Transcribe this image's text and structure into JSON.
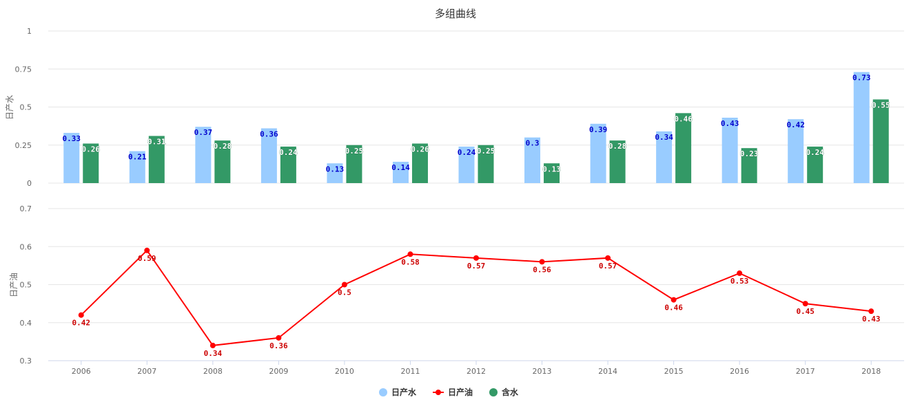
{
  "chart_data": {
    "title": "多组曲线",
    "categories": [
      "2006",
      "2007",
      "2008",
      "2009",
      "2010",
      "2011",
      "2012",
      "2013",
      "2014",
      "2015",
      "2016",
      "2017",
      "2018"
    ],
    "panels": [
      {
        "type": "bar",
        "ylabel": "日产水",
        "ylim": [
          0,
          1
        ],
        "yticks": [
          0,
          0.25,
          0.5,
          0.75,
          1
        ],
        "series": [
          {
            "name": "日产水",
            "color": "#99ccff",
            "label_color": "#0000cc",
            "values": [
              0.33,
              0.21,
              0.37,
              0.36,
              0.13,
              0.14,
              0.24,
              0.3,
              0.39,
              0.34,
              0.43,
              0.42,
              0.73
            ]
          },
          {
            "name": "含水",
            "color": "#339966",
            "label_color": "#ffffff",
            "values": [
              0.26,
              0.31,
              0.28,
              0.24,
              0.25,
              0.26,
              0.25,
              0.13,
              0.28,
              0.46,
              0.23,
              0.24,
              0.55
            ]
          }
        ]
      },
      {
        "type": "line",
        "ylabel": "日产油",
        "ylim": [
          0.3,
          0.7
        ],
        "yticks": [
          0.3,
          0.4,
          0.5,
          0.6,
          0.7
        ],
        "series": [
          {
            "name": "日产油",
            "color": "#ff0000",
            "label_color": "#cc0000",
            "values": [
              0.42,
              0.59,
              0.34,
              0.36,
              0.5,
              0.58,
              0.57,
              0.56,
              0.57,
              0.46,
              0.53,
              0.45,
              0.43
            ]
          }
        ]
      }
    ],
    "legend": {
      "position": "bottom-center",
      "items": [
        {
          "name": "日产水",
          "color": "#99ccff",
          "symbol": "circle"
        },
        {
          "name": "日产油",
          "color": "#ff0000",
          "symbol": "line-circle"
        },
        {
          "name": "含水",
          "color": "#339966",
          "symbol": "circle"
        }
      ]
    },
    "grid": true
  }
}
